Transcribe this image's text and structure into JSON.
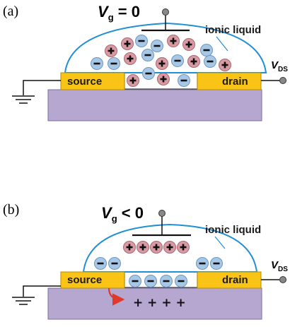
{
  "panel_a": {
    "tag": "(a)",
    "gate_symbol": "V",
    "gate_subscript": "g",
    "gate_relation": " = 0",
    "liquid_label": "ionic liquid",
    "source_label": "source",
    "drain_label": "drain",
    "drain_voltage_symbol": "V",
    "drain_voltage_subscript": "DS"
  },
  "panel_b": {
    "tag": "(b)",
    "gate_symbol": "V",
    "gate_subscript": "g",
    "gate_relation": " < 0",
    "liquid_label": "ionic liquid",
    "source_label": "source",
    "drain_label": "drain",
    "drain_voltage_symbol": "V",
    "drain_voltage_subscript": "DS",
    "channel_charges": "+ + + +"
  },
  "colors": {
    "substrate": "#b5a7cf",
    "electrode": "#fac416",
    "droplet_outline": "#1f8fd6",
    "cation": "#d99aa4",
    "anion": "#a6c7e6",
    "arrow": "#e03a2a"
  }
}
